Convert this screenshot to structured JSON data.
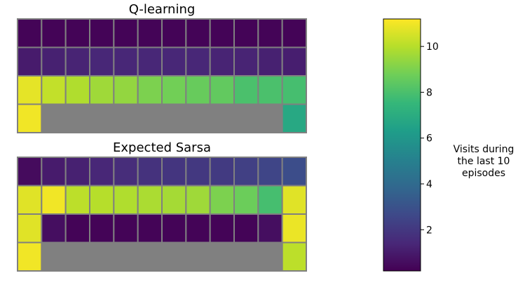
{
  "chart_data": [
    {
      "type": "heatmap",
      "title": "Q-learning",
      "rows": 4,
      "cols": 12,
      "values": [
        [
          0.3,
          0.3,
          0.3,
          0.3,
          0.3,
          0.3,
          0.3,
          0.3,
          0.3,
          0.3,
          0.3,
          0.3
        ],
        [
          1.0,
          1.2,
          1.3,
          1.4,
          1.4,
          1.4,
          1.4,
          1.4,
          1.3,
          1.3,
          1.2,
          1.1
        ],
        [
          10.8,
          10.2,
          9.9,
          9.6,
          9.4,
          9.0,
          8.8,
          8.6,
          8.5,
          8.0,
          8.0,
          7.9
        ],
        [
          11.0,
          null,
          null,
          null,
          null,
          null,
          null,
          null,
          null,
          null,
          null,
          6.8
        ]
      ]
    },
    {
      "type": "heatmap",
      "title": "Expected Sarsa",
      "rows": 4,
      "cols": 12,
      "values": [
        [
          0.5,
          1.0,
          1.2,
          1.4,
          1.6,
          1.8,
          1.9,
          2.0,
          2.1,
          2.3,
          2.5,
          2.8
        ],
        [
          10.7,
          11.0,
          10.1,
          10.0,
          9.9,
          9.8,
          9.7,
          9.6,
          9.0,
          8.7,
          7.9,
          10.7
        ],
        [
          10.7,
          0.6,
          0.3,
          0.3,
          0.3,
          0.3,
          0.3,
          0.3,
          0.3,
          0.3,
          0.6,
          10.9
        ],
        [
          11.0,
          null,
          null,
          null,
          null,
          null,
          null,
          null,
          null,
          null,
          null,
          10.1
        ]
      ]
    }
  ],
  "colorbar": {
    "colormap": "viridis",
    "vmin": 0.2,
    "vmax": 11.2,
    "ticks": [
      2,
      4,
      6,
      8,
      10
    ],
    "label": "Visits during the last 10 episodes"
  },
  "colors": {
    "grid_line": "#808080",
    "cliff": "#808080"
  }
}
